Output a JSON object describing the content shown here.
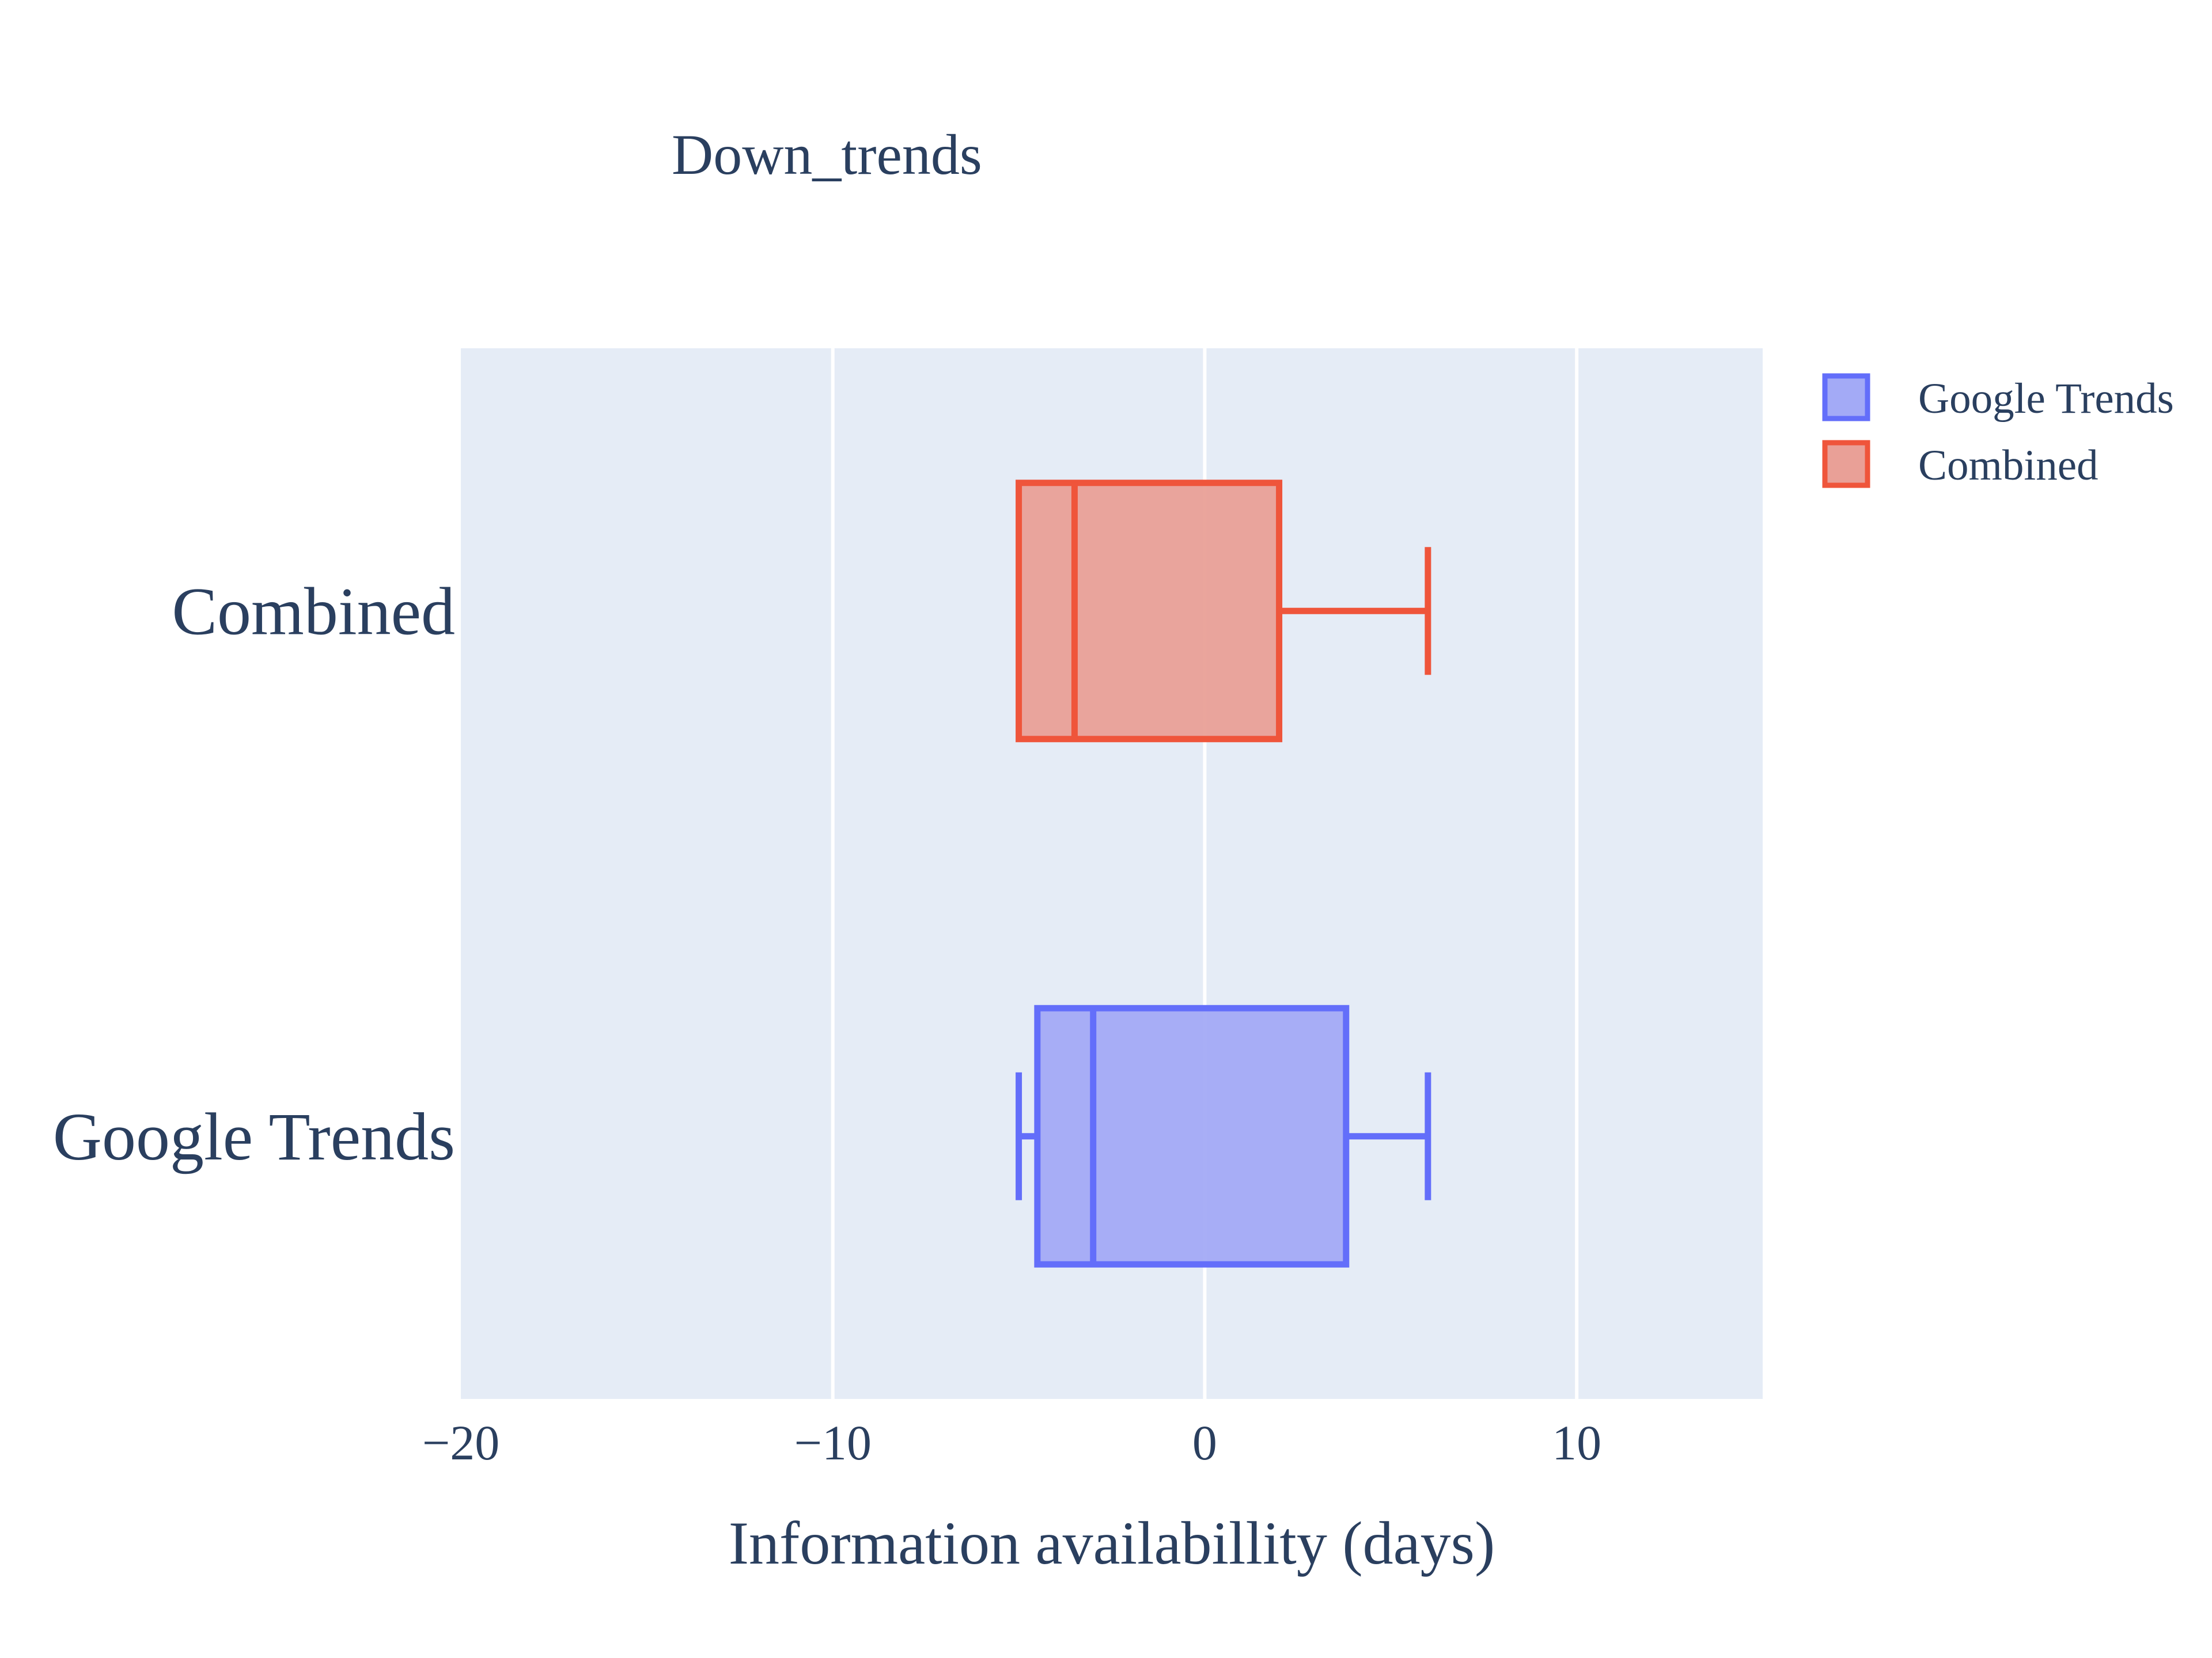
{
  "chart_data": {
    "type": "box",
    "orientation": "horizontal",
    "title": "Down_trends",
    "xlabel": "Information availabillity (days)",
    "ylabel": "",
    "xlim": [
      -20,
      15
    ],
    "xticks": [
      -20,
      -10,
      0,
      10
    ],
    "xtick_labels": [
      "−20",
      "−10",
      "0",
      "10"
    ],
    "grid": true,
    "legend_position": "top-right",
    "categories": [
      "Combined",
      "Google Trends"
    ],
    "series": [
      {
        "name": "Google Trends",
        "color": "#636efa",
        "fill": "#a3aaf6",
        "whisker_low": -5,
        "q1": -4.5,
        "median": -3,
        "q3": 3.8,
        "whisker_high": 6
      },
      {
        "name": "Combined",
        "color": "#ef553b",
        "fill": "#e9a097",
        "whisker_low": -5,
        "q1": -5,
        "median": -3.5,
        "q3": 2,
        "whisker_high": 6
      }
    ]
  },
  "colors": {
    "plot_background": "#e5ecf6",
    "grid": "#ffffff",
    "text": "#2a3f5f"
  }
}
